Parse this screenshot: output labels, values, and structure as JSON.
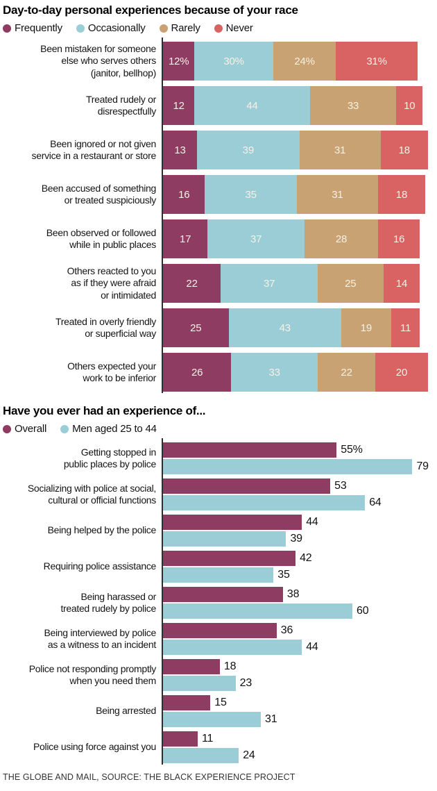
{
  "page": {
    "footer": "THE GLOBE AND MAIL, SOURCE: THE BLACK EXPERIENCE PROJECT"
  },
  "colors": {
    "frequently": "#8e3c62",
    "occasionally": "#9bcdd7",
    "rarely": "#c9a273",
    "never": "#d96262",
    "bar_text": "#f7f1e4",
    "axis": "#2e2e2e"
  },
  "chart_data": [
    {
      "type": "bar",
      "variant": "horizontal-stacked",
      "title": "Day-to-day personal experiences because of your race",
      "unit": "percent",
      "legend_position": "top",
      "grid": false,
      "xlim": [
        0,
        100
      ],
      "legend": [
        {
          "label": "Frequently",
          "color": "#8e3c62"
        },
        {
          "label": "Occasionally",
          "color": "#9bcdd7"
        },
        {
          "label": "Rarely",
          "color": "#c9a273"
        },
        {
          "label": "Never",
          "color": "#d96262"
        }
      ],
      "categories": [
        "Been mistaken for someone\nelse who serves others\n(janitor, bellhop)",
        "Treated rudely or\ndisrespectfully",
        "Been ignored or not given\nservice in a restaurant or store",
        "Been accused of something\nor treated suspiciously",
        "Been observed or followed\nwhile in public places",
        "Others reacted to you\nas if they were afraid\nor intimidated",
        "Treated in overly friendly\nor superficial way",
        "Others expected your\nwork to be inferior"
      ],
      "series": [
        {
          "name": "Frequently",
          "values": [
            12,
            12,
            13,
            16,
            17,
            22,
            25,
            26
          ],
          "labels": [
            "12%",
            "12",
            "13",
            "16",
            "17",
            "22",
            "25",
            "26"
          ]
        },
        {
          "name": "Occasionally",
          "values": [
            30,
            44,
            39,
            35,
            37,
            37,
            43,
            33
          ],
          "labels": [
            "30%",
            "44",
            "39",
            "35",
            "37",
            "37",
            "43",
            "33"
          ]
        },
        {
          "name": "Rarely",
          "values": [
            24,
            33,
            31,
            31,
            28,
            25,
            19,
            22
          ],
          "labels": [
            "24%",
            "33",
            "31",
            "31",
            "28",
            "25",
            "19",
            "22"
          ]
        },
        {
          "name": "Never",
          "values": [
            31,
            10,
            18,
            18,
            16,
            14,
            11,
            20
          ],
          "labels": [
            "31%",
            "10",
            "18",
            "18",
            "16",
            "14",
            "11",
            "20"
          ]
        }
      ]
    },
    {
      "type": "bar",
      "variant": "horizontal-grouped",
      "title": "Have you ever had an experience of...",
      "unit": "percent",
      "legend_position": "top",
      "grid": false,
      "xlim": [
        0,
        82
      ],
      "legend": [
        {
          "label": "Overall",
          "color": "#8e3c62"
        },
        {
          "label": "Men aged 25 to 44",
          "color": "#9bcdd7"
        }
      ],
      "categories": [
        "Getting stopped in\npublic places by police",
        "Socializing with police at social,\ncultural or official functions",
        "Being helped by the police",
        "Requiring police assistance",
        "Being harassed or\ntreated rudely by police",
        "Being interviewed by police\nas a witness to an incident",
        "Police not responding promptly\nwhen you need them",
        "Being arrested",
        "Police using force against you"
      ],
      "series": [
        {
          "name": "Overall",
          "values": [
            55,
            53,
            44,
            42,
            38,
            36,
            18,
            15,
            11
          ],
          "labels": [
            "55%",
            "53",
            "44",
            "42",
            "38",
            "36",
            "18",
            "15",
            "11"
          ]
        },
        {
          "name": "Men aged 25 to 44",
          "values": [
            79,
            64,
            39,
            35,
            60,
            44,
            23,
            31,
            24
          ],
          "labels": [
            "79",
            "64",
            "39",
            "35",
            "60",
            "44",
            "23",
            "31",
            "24"
          ]
        }
      ]
    }
  ]
}
